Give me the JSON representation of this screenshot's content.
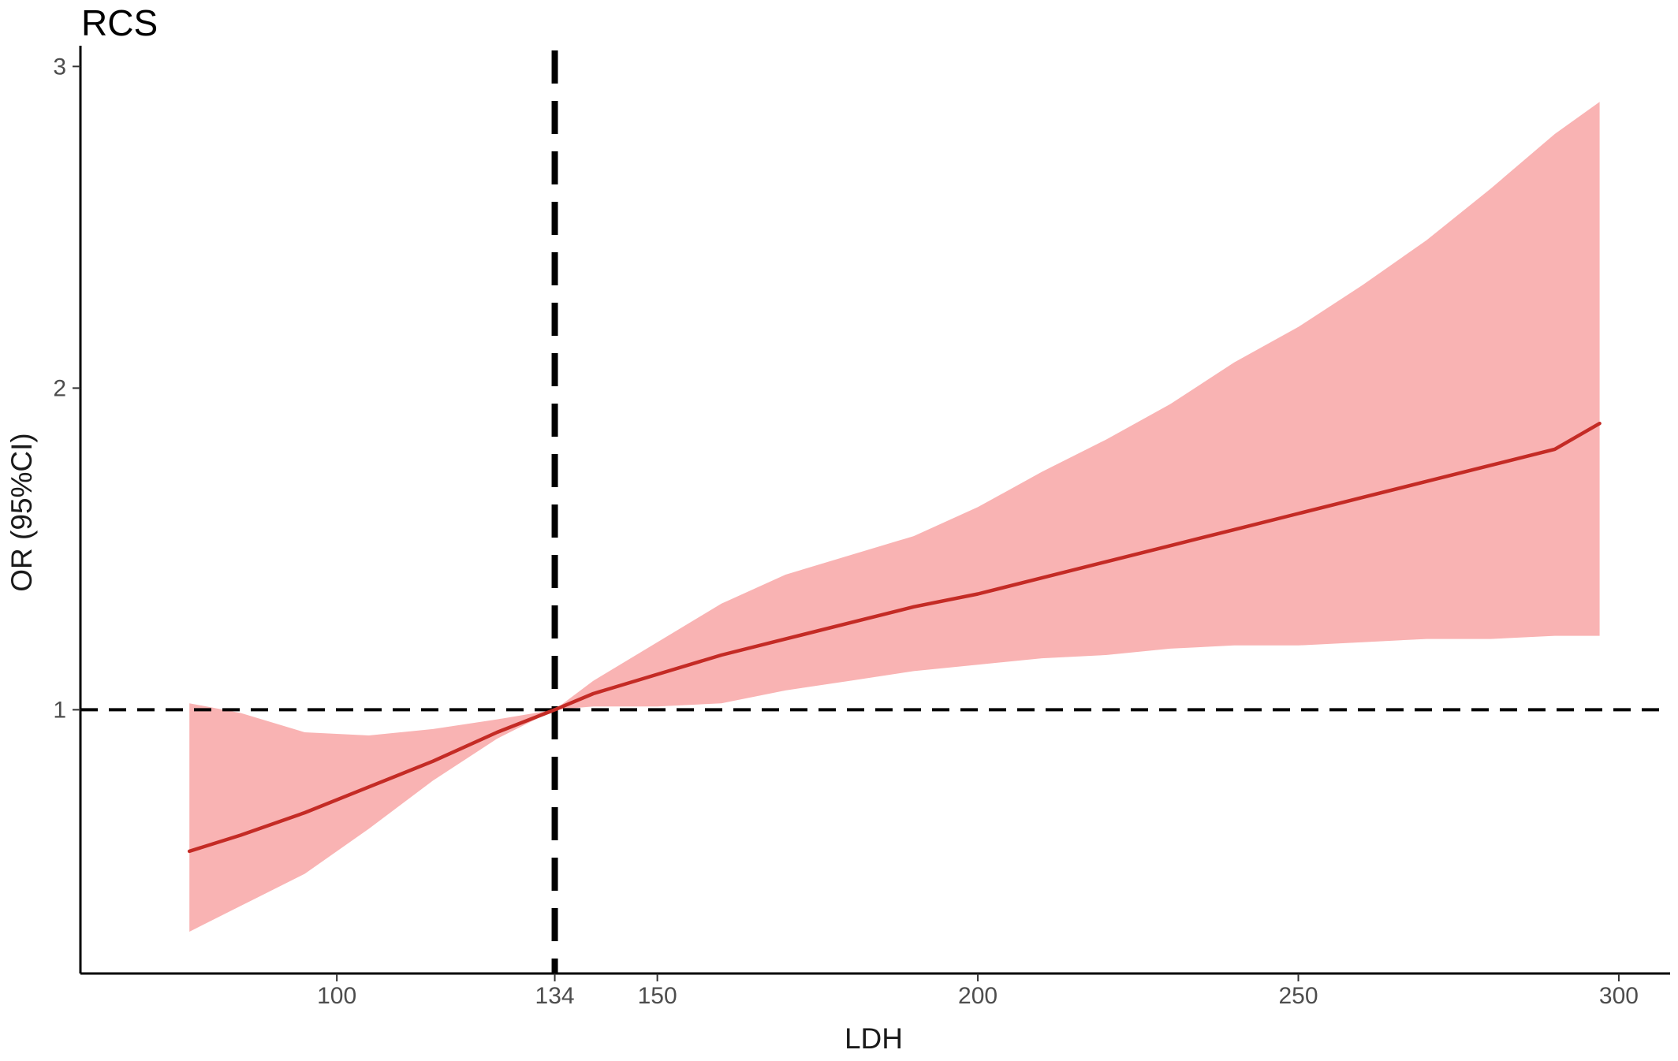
{
  "chart_data": {
    "type": "line",
    "title": "RCS",
    "xlabel": "LDH",
    "ylabel": "OR (95%CI)",
    "xlim": [
      60,
      308
    ],
    "ylim": [
      0.18,
      3.04
    ],
    "xticks": [
      100,
      134,
      150,
      200,
      250,
      300
    ],
    "xtick_labels": [
      "100",
      "134",
      "150",
      "200",
      "250",
      "300"
    ],
    "yticks": [
      1,
      2,
      3
    ],
    "ytick_labels": [
      "1",
      "2",
      "3"
    ],
    "grid": false,
    "legend": "none",
    "reference_lines": {
      "vertical_x": 134,
      "horizontal_y": 1
    },
    "colors": {
      "line": "#c42b25",
      "band": "#f9b3b3",
      "reference": "#000000",
      "axis": "#000000"
    },
    "series": [
      {
        "x": [
          77,
          85,
          95,
          105,
          115,
          125,
          134,
          140,
          150,
          160,
          170,
          180,
          190,
          200,
          210,
          220,
          230,
          240,
          250,
          260,
          270,
          280,
          290,
          297
        ],
        "y": [
          0.56,
          0.61,
          0.68,
          0.76,
          0.84,
          0.93,
          1.0,
          1.05,
          1.11,
          1.17,
          1.22,
          1.27,
          1.32,
          1.36,
          1.41,
          1.46,
          1.51,
          1.56,
          1.61,
          1.66,
          1.71,
          1.76,
          1.81,
          1.89
        ],
        "lower": [
          0.31,
          0.39,
          0.49,
          0.63,
          0.78,
          0.91,
          1.0,
          1.01,
          1.01,
          1.02,
          1.06,
          1.09,
          1.12,
          1.14,
          1.16,
          1.17,
          1.19,
          1.2,
          1.2,
          1.21,
          1.22,
          1.22,
          1.23,
          1.23
        ],
        "upper": [
          1.02,
          0.99,
          0.93,
          0.92,
          0.94,
          0.97,
          1.0,
          1.09,
          1.21,
          1.33,
          1.42,
          1.48,
          1.54,
          1.63,
          1.74,
          1.84,
          1.95,
          2.08,
          2.19,
          2.32,
          2.46,
          2.62,
          2.79,
          2.89
        ]
      }
    ]
  }
}
